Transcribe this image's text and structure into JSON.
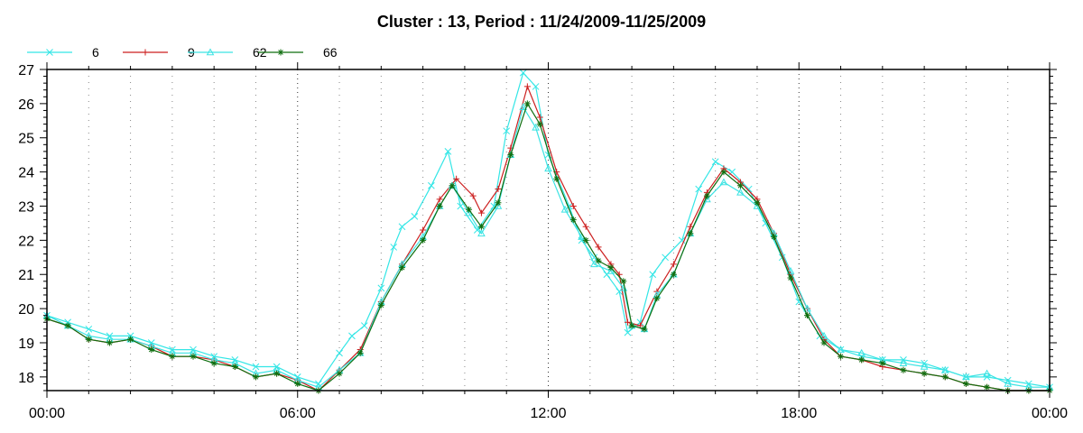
{
  "chart_data": {
    "type": "line",
    "title": "Cluster : 13, Period : 11/24/2009-11/25/2009",
    "xlabel": "",
    "ylabel": "",
    "x_ticks": [
      {
        "hours": 0,
        "label": "00:00"
      },
      {
        "hours": 6,
        "label": "06:00"
      },
      {
        "hours": 12,
        "label": "12:00"
      },
      {
        "hours": 18,
        "label": "18:00"
      },
      {
        "hours": 24,
        "label": "00:00"
      }
    ],
    "xlim": [
      0,
      24
    ],
    "ylim": [
      17.6,
      27
    ],
    "y_ticks": [
      18,
      19,
      20,
      21,
      22,
      23,
      24,
      25,
      26,
      27
    ],
    "grid": true,
    "legend_position": "top-left",
    "series": [
      {
        "name": "6",
        "color": "#33e6e6",
        "marker": "x",
        "points": [
          [
            0,
            19.8
          ],
          [
            0.5,
            19.6
          ],
          [
            1,
            19.4
          ],
          [
            1.5,
            19.2
          ],
          [
            2,
            19.2
          ],
          [
            2.5,
            19.0
          ],
          [
            3,
            18.8
          ],
          [
            3.5,
            18.8
          ],
          [
            4,
            18.6
          ],
          [
            4.5,
            18.5
          ],
          [
            5,
            18.3
          ],
          [
            5.5,
            18.3
          ],
          [
            6,
            18.0
          ],
          [
            6.5,
            17.8
          ],
          [
            7,
            18.7
          ],
          [
            7.3,
            19.2
          ],
          [
            7.6,
            19.5
          ],
          [
            8,
            20.6
          ],
          [
            8.3,
            21.8
          ],
          [
            8.5,
            22.4
          ],
          [
            8.8,
            22.7
          ],
          [
            9.2,
            23.6
          ],
          [
            9.6,
            24.6
          ],
          [
            9.9,
            23.0
          ],
          [
            10.3,
            22.3
          ],
          [
            10.7,
            23.0
          ],
          [
            11,
            25.2
          ],
          [
            11.4,
            26.9
          ],
          [
            11.7,
            26.5
          ],
          [
            12,
            24.5
          ],
          [
            12.5,
            23.0
          ],
          [
            12.8,
            22.0
          ],
          [
            13.1,
            21.5
          ],
          [
            13.4,
            21.0
          ],
          [
            13.7,
            20.5
          ],
          [
            13.9,
            19.3
          ],
          [
            14.2,
            19.6
          ],
          [
            14.5,
            21.0
          ],
          [
            14.8,
            21.5
          ],
          [
            15.2,
            22.0
          ],
          [
            15.6,
            23.5
          ],
          [
            16,
            24.3
          ],
          [
            16.4,
            24.0
          ],
          [
            16.8,
            23.5
          ],
          [
            17.2,
            22.5
          ],
          [
            17.6,
            21.5
          ],
          [
            18,
            20.2
          ],
          [
            18.5,
            19.2
          ],
          [
            19,
            18.8
          ],
          [
            19.5,
            18.6
          ],
          [
            20,
            18.5
          ],
          [
            20.5,
            18.5
          ],
          [
            21,
            18.4
          ],
          [
            21.5,
            18.2
          ],
          [
            22,
            18.0
          ],
          [
            22.5,
            18.0
          ],
          [
            23,
            17.9
          ],
          [
            23.5,
            17.8
          ],
          [
            24,
            17.7
          ]
        ]
      },
      {
        "name": "9",
        "color": "#cc1f1f",
        "marker": "+",
        "points": [
          [
            0,
            19.7
          ],
          [
            0.5,
            19.5
          ],
          [
            1,
            19.1
          ],
          [
            1.5,
            19.0
          ],
          [
            2,
            19.1
          ],
          [
            2.5,
            18.9
          ],
          [
            3,
            18.6
          ],
          [
            3.5,
            18.6
          ],
          [
            4,
            18.5
          ],
          [
            4.5,
            18.3
          ],
          [
            5,
            18.0
          ],
          [
            5.5,
            18.1
          ],
          [
            6,
            17.9
          ],
          [
            6.5,
            17.6
          ],
          [
            7,
            18.2
          ],
          [
            7.5,
            18.8
          ],
          [
            8,
            20.2
          ],
          [
            8.5,
            21.3
          ],
          [
            9,
            22.3
          ],
          [
            9.4,
            23.2
          ],
          [
            9.8,
            23.8
          ],
          [
            10.2,
            23.3
          ],
          [
            10.4,
            22.8
          ],
          [
            10.8,
            23.5
          ],
          [
            11.1,
            24.7
          ],
          [
            11.5,
            26.5
          ],
          [
            11.8,
            25.6
          ],
          [
            12.2,
            24.0
          ],
          [
            12.6,
            23.0
          ],
          [
            12.9,
            22.4
          ],
          [
            13.2,
            21.8
          ],
          [
            13.5,
            21.3
          ],
          [
            13.7,
            21.0
          ],
          [
            13.9,
            19.6
          ],
          [
            14.2,
            19.5
          ],
          [
            14.6,
            20.5
          ],
          [
            15,
            21.3
          ],
          [
            15.4,
            22.4
          ],
          [
            15.8,
            23.4
          ],
          [
            16.2,
            24.1
          ],
          [
            16.6,
            23.7
          ],
          [
            17,
            23.2
          ],
          [
            17.4,
            22.2
          ],
          [
            17.8,
            21.0
          ],
          [
            18.2,
            20.0
          ],
          [
            18.6,
            19.1
          ],
          [
            19,
            18.6
          ],
          [
            19.5,
            18.5
          ],
          [
            20,
            18.3
          ],
          [
            20.5,
            18.2
          ],
          [
            21,
            18.1
          ],
          [
            21.5,
            18.0
          ],
          [
            22,
            17.8
          ],
          [
            22.5,
            17.7
          ],
          [
            23,
            17.6
          ],
          [
            23.5,
            17.6
          ],
          [
            24,
            17.6
          ]
        ]
      },
      {
        "name": "62",
        "color": "#3ce3e3",
        "marker": "triangle",
        "points": [
          [
            0,
            19.8
          ],
          [
            0.5,
            19.5
          ],
          [
            1,
            19.2
          ],
          [
            1.5,
            19.1
          ],
          [
            2,
            19.1
          ],
          [
            2.5,
            18.9
          ],
          [
            3,
            18.7
          ],
          [
            3.5,
            18.7
          ],
          [
            4,
            18.5
          ],
          [
            4.5,
            18.4
          ],
          [
            5,
            18.1
          ],
          [
            5.5,
            18.2
          ],
          [
            6,
            17.9
          ],
          [
            6.5,
            17.7
          ],
          [
            7,
            18.2
          ],
          [
            7.5,
            18.7
          ],
          [
            8,
            20.2
          ],
          [
            8.5,
            21.3
          ],
          [
            9,
            22.1
          ],
          [
            9.4,
            23.0
          ],
          [
            9.7,
            23.6
          ],
          [
            10.1,
            22.8
          ],
          [
            10.4,
            22.2
          ],
          [
            10.8,
            23.0
          ],
          [
            11.1,
            24.5
          ],
          [
            11.4,
            25.9
          ],
          [
            11.7,
            25.3
          ],
          [
            12,
            24.1
          ],
          [
            12.4,
            22.9
          ],
          [
            12.8,
            22.1
          ],
          [
            13.1,
            21.3
          ],
          [
            13.5,
            21.1
          ],
          [
            13.8,
            20.6
          ],
          [
            14,
            19.5
          ],
          [
            14.3,
            19.4
          ],
          [
            14.6,
            20.4
          ],
          [
            15,
            21.0
          ],
          [
            15.4,
            22.2
          ],
          [
            15.8,
            23.2
          ],
          [
            16.2,
            23.7
          ],
          [
            16.6,
            23.4
          ],
          [
            17,
            23.0
          ],
          [
            17.4,
            22.2
          ],
          [
            17.8,
            21.1
          ],
          [
            18.2,
            20.0
          ],
          [
            18.6,
            19.2
          ],
          [
            19,
            18.8
          ],
          [
            19.5,
            18.7
          ],
          [
            20,
            18.5
          ],
          [
            20.5,
            18.4
          ],
          [
            21,
            18.3
          ],
          [
            21.5,
            18.2
          ],
          [
            22,
            18.0
          ],
          [
            22.5,
            18.1
          ],
          [
            23,
            17.8
          ],
          [
            23.5,
            17.7
          ],
          [
            24,
            17.7
          ]
        ]
      },
      {
        "name": "66",
        "color": "#0f6e0f",
        "marker": "star",
        "points": [
          [
            0,
            19.7
          ],
          [
            0.5,
            19.5
          ],
          [
            1,
            19.1
          ],
          [
            1.5,
            19.0
          ],
          [
            2,
            19.1
          ],
          [
            2.5,
            18.8
          ],
          [
            3,
            18.6
          ],
          [
            3.5,
            18.6
          ],
          [
            4,
            18.4
          ],
          [
            4.5,
            18.3
          ],
          [
            5,
            18.0
          ],
          [
            5.5,
            18.1
          ],
          [
            6,
            17.8
          ],
          [
            6.5,
            17.6
          ],
          [
            7,
            18.1
          ],
          [
            7.5,
            18.7
          ],
          [
            8,
            20.1
          ],
          [
            8.5,
            21.2
          ],
          [
            9,
            22.0
          ],
          [
            9.4,
            23.0
          ],
          [
            9.7,
            23.6
          ],
          [
            10.1,
            22.9
          ],
          [
            10.4,
            22.4
          ],
          [
            10.8,
            23.1
          ],
          [
            11.1,
            24.5
          ],
          [
            11.5,
            26.0
          ],
          [
            11.8,
            25.4
          ],
          [
            12.2,
            23.8
          ],
          [
            12.6,
            22.6
          ],
          [
            12.9,
            22.0
          ],
          [
            13.2,
            21.4
          ],
          [
            13.5,
            21.2
          ],
          [
            13.8,
            20.8
          ],
          [
            14,
            19.5
          ],
          [
            14.3,
            19.4
          ],
          [
            14.6,
            20.3
          ],
          [
            15,
            21.0
          ],
          [
            15.4,
            22.2
          ],
          [
            15.8,
            23.3
          ],
          [
            16.2,
            24.0
          ],
          [
            16.6,
            23.6
          ],
          [
            17,
            23.1
          ],
          [
            17.4,
            22.1
          ],
          [
            17.8,
            20.9
          ],
          [
            18.2,
            19.8
          ],
          [
            18.6,
            19.0
          ],
          [
            19,
            18.6
          ],
          [
            19.5,
            18.5
          ],
          [
            20,
            18.4
          ],
          [
            20.5,
            18.2
          ],
          [
            21,
            18.1
          ],
          [
            21.5,
            18.0
          ],
          [
            22,
            17.8
          ],
          [
            22.5,
            17.7
          ],
          [
            23,
            17.6
          ],
          [
            23.5,
            17.6
          ],
          [
            24,
            17.6
          ]
        ]
      }
    ]
  }
}
